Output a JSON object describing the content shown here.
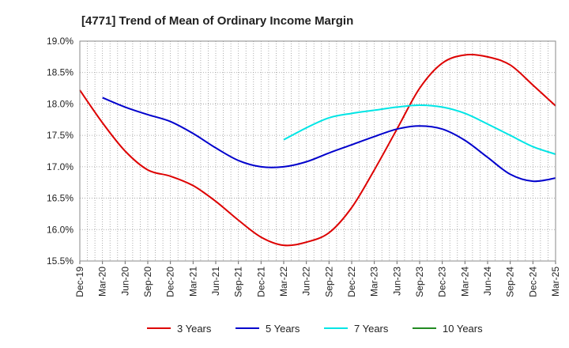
{
  "chart_data": {
    "type": "line",
    "title": "[4771]  Trend of Mean of Ordinary Income Margin",
    "xlabel": "",
    "ylabel": "",
    "x_tick_labels": [
      "Dec-19",
      "Mar-20",
      "Jun-20",
      "Sep-20",
      "Dec-20",
      "Mar-21",
      "Jun-21",
      "Sep-21",
      "Dec-21",
      "Mar-22",
      "Jun-22",
      "Sep-22",
      "Dec-22",
      "Mar-23",
      "Jun-23",
      "Sep-23",
      "Dec-23",
      "Mar-24",
      "Jun-24",
      "Sep-24",
      "Dec-24",
      "Mar-25"
    ],
    "y_tick_labels": [
      "15.5%",
      "16.0%",
      "16.5%",
      "17.0%",
      "17.5%",
      "18.0%",
      "18.5%",
      "19.0%"
    ],
    "y_ticks": [
      15.5,
      16.0,
      16.5,
      17.0,
      17.5,
      18.0,
      18.5,
      19.0
    ],
    "ylim": [
      15.5,
      19.0
    ],
    "y_unit": "%",
    "grid": true,
    "legend_position": "bottom",
    "series": [
      {
        "name": "3 Years",
        "color": "#dd0000",
        "values": [
          18.22,
          17.7,
          17.25,
          16.95,
          16.85,
          16.7,
          16.45,
          16.15,
          15.88,
          15.75,
          15.8,
          15.95,
          16.35,
          16.95,
          17.6,
          18.25,
          18.65,
          18.78,
          18.75,
          18.62,
          18.3,
          17.97
        ]
      },
      {
        "name": "5 Years",
        "color": "#0000cc",
        "values": [
          null,
          18.1,
          17.95,
          17.83,
          17.72,
          17.53,
          17.3,
          17.1,
          17.0,
          17.0,
          17.08,
          17.22,
          17.35,
          17.48,
          17.6,
          17.65,
          17.6,
          17.42,
          17.15,
          16.88,
          16.77,
          16.82
        ]
      },
      {
        "name": "7 Years",
        "color": "#00e5e5",
        "values": [
          null,
          null,
          null,
          null,
          null,
          null,
          null,
          null,
          null,
          17.43,
          17.62,
          17.78,
          17.85,
          17.9,
          17.95,
          17.98,
          17.95,
          17.85,
          17.68,
          17.5,
          17.32,
          17.2
        ]
      },
      {
        "name": "10 Years",
        "color": "#228b22",
        "values": []
      }
    ]
  }
}
